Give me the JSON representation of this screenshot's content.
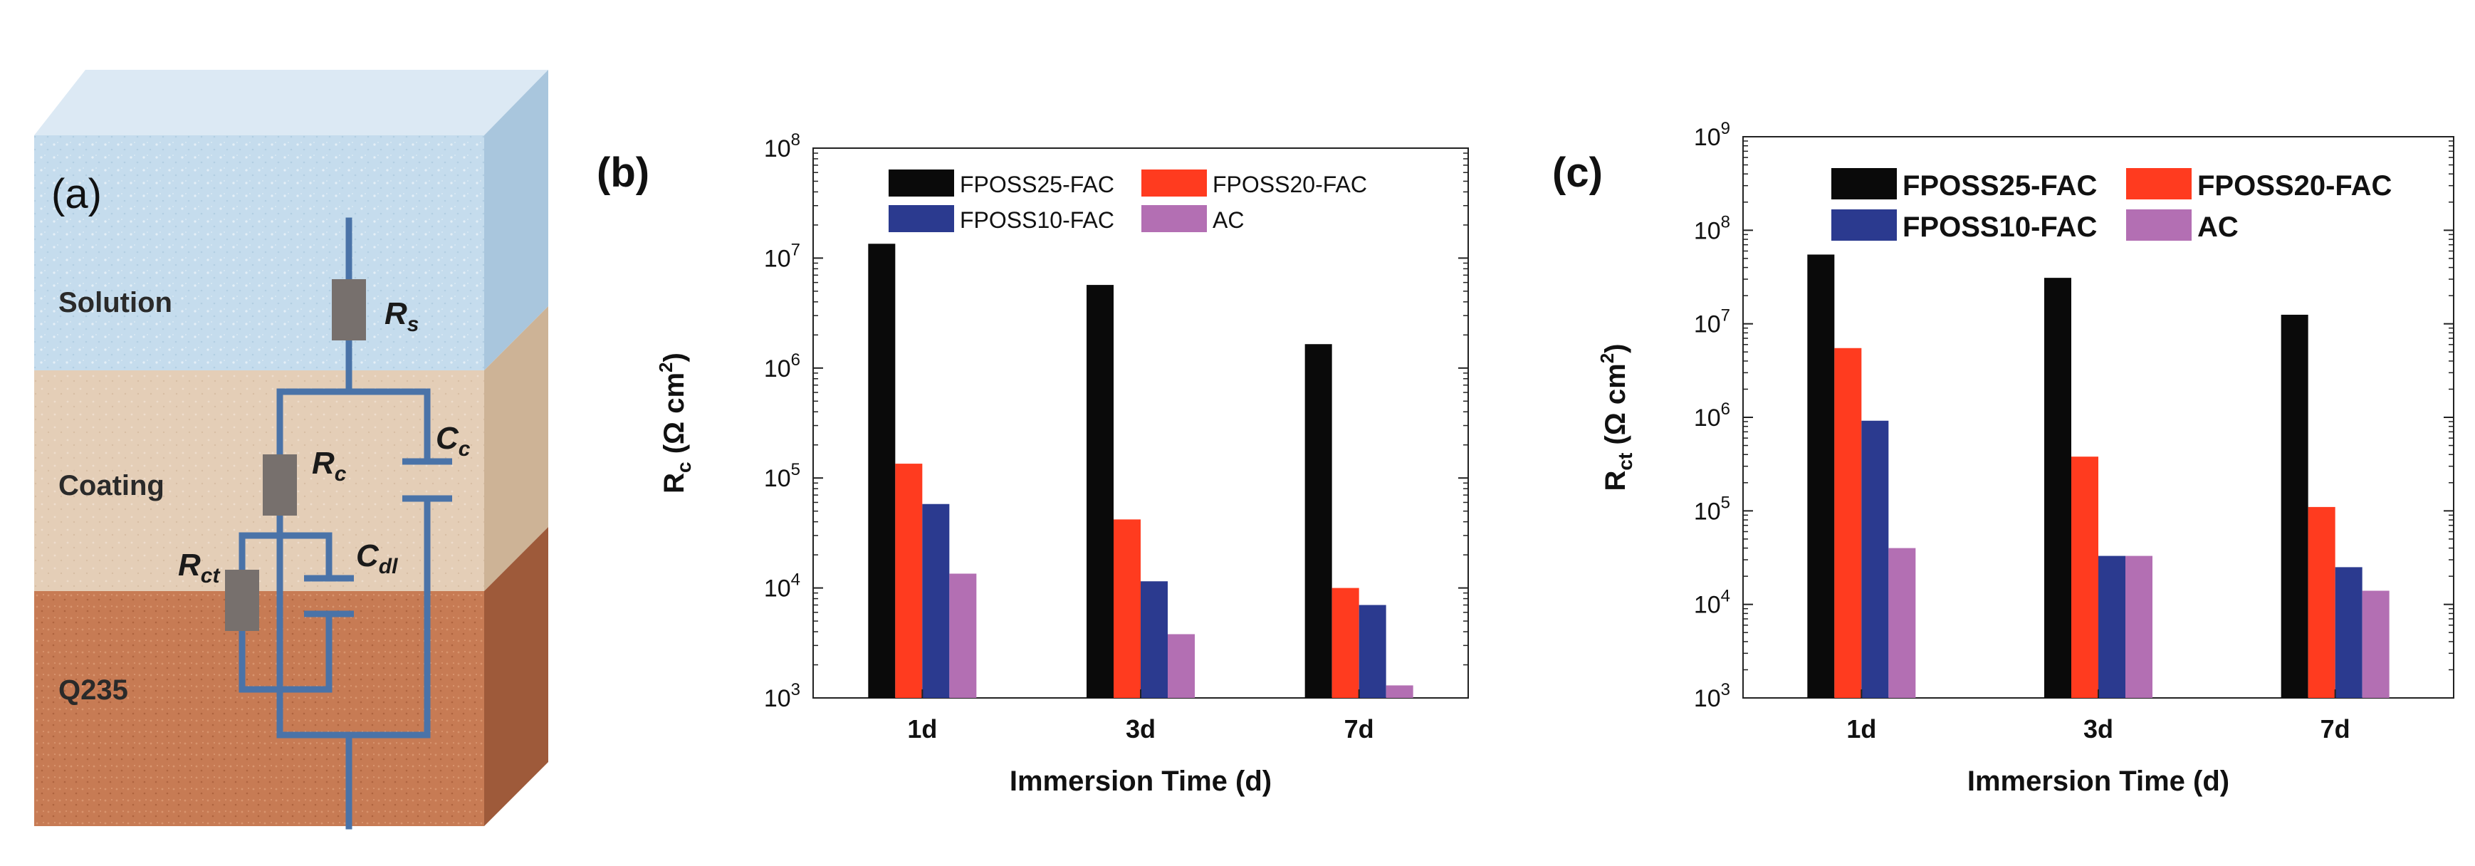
{
  "panel_a": {
    "label": "(a)",
    "layers": {
      "solution": "Solution",
      "coating": "Coating",
      "substrate": "Q235"
    },
    "components": {
      "rs": {
        "main": "R",
        "sub": "s"
      },
      "rc": {
        "main": "R",
        "sub": "c"
      },
      "cc": {
        "main": "C",
        "sub": "c"
      },
      "rct": {
        "main": "R",
        "sub": "ct"
      },
      "cdl": {
        "main": "C",
        "sub": "dl"
      }
    },
    "colors": {
      "solution": "#c5dced",
      "coating": "#e4ceb7",
      "substrate": "#c77b54",
      "wire": "#4a73a8",
      "resistor": "#77706d"
    }
  },
  "chart_data": [
    {
      "panel": "(b)",
      "type": "bar",
      "scale": "log",
      "categories": [
        "1d",
        "3d",
        "7d"
      ],
      "series": [
        {
          "name": "FPOSS25-FAC",
          "color": "#0a0a0a",
          "values": [
            13500000,
            5700000,
            1650000
          ]
        },
        {
          "name": "FPOSS20-FAC",
          "color": "#ff3b1f",
          "values": [
            135000,
            42000,
            10000
          ]
        },
        {
          "name": "FPOSS10-FAC",
          "color": "#2b3a8f",
          "values": [
            58000,
            11500,
            7000
          ]
        },
        {
          "name": "AC",
          "color": "#b36fb3",
          "values": [
            13500,
            3800,
            1300
          ]
        }
      ],
      "xlabel": "Immersion  Time (d)",
      "ylabel": {
        "main": "R",
        "sub": "c",
        "rest": " (Ω cm",
        "sup": "2",
        "end": ")"
      },
      "yticks": [
        {
          "base": "10",
          "exp": "3"
        },
        {
          "base": "10",
          "exp": "4"
        },
        {
          "base": "10",
          "exp": "5"
        },
        {
          "base": "10",
          "exp": "6"
        },
        {
          "base": "10",
          "exp": "7"
        },
        {
          "base": "10",
          "exp": "8"
        }
      ],
      "ylim": [
        1000,
        100000000
      ],
      "legend_position": "top"
    },
    {
      "panel": "(c)",
      "type": "bar",
      "scale": "log",
      "categories": [
        "1d",
        "3d",
        "7d"
      ],
      "series": [
        {
          "name": "FPOSS25-FAC",
          "color": "#0a0a0a",
          "values": [
            55000000,
            31000000,
            12500000
          ]
        },
        {
          "name": "FPOSS20-FAC",
          "color": "#ff3b1f",
          "values": [
            5500000,
            380000,
            110000
          ]
        },
        {
          "name": "FPOSS10-FAC",
          "color": "#2b3a8f",
          "values": [
            920000,
            33000,
            25000
          ]
        },
        {
          "name": "AC",
          "color": "#b36fb3",
          "values": [
            40000,
            33000,
            14000
          ]
        }
      ],
      "xlabel": "Immersion  Time (d)",
      "ylabel": {
        "main": "R",
        "sub": "ct",
        "rest": " (Ω cm",
        "sup": "2",
        "end": ")"
      },
      "yticks": [
        {
          "base": "10",
          "exp": "3"
        },
        {
          "base": "10",
          "exp": "4"
        },
        {
          "base": "10",
          "exp": "5"
        },
        {
          "base": "10",
          "exp": "6"
        },
        {
          "base": "10",
          "exp": "7"
        },
        {
          "base": "10",
          "exp": "8"
        },
        {
          "base": "10",
          "exp": "9"
        }
      ],
      "ylim": [
        1000,
        1000000000
      ],
      "legend_position": "top"
    }
  ]
}
